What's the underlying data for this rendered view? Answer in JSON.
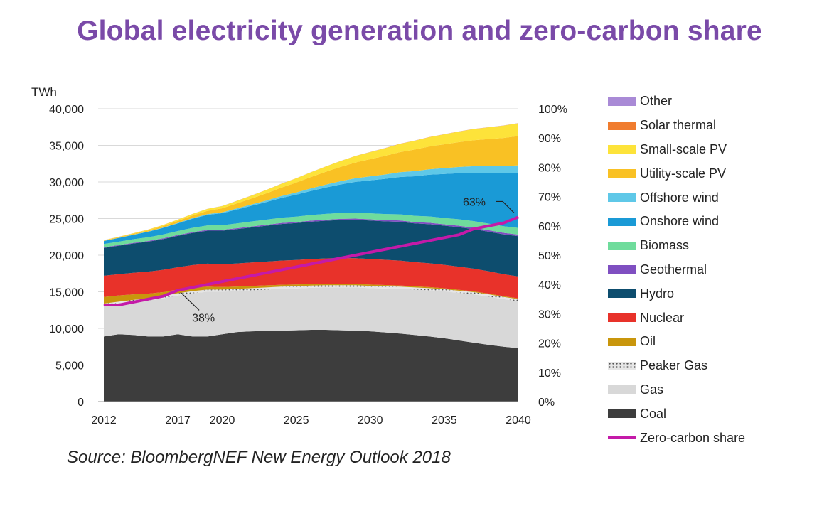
{
  "title": "Global electricity generation and zero-carbon share",
  "source": "Source: BloombergNEF New Energy Outlook 2018",
  "chart_data": {
    "type": "area",
    "stacked": true,
    "title": "Global electricity generation and zero-carbon share",
    "ylabel": "TWh",
    "ylim": [
      0,
      40000
    ],
    "yticks": [
      "0",
      "5,000",
      "10,000",
      "15,000",
      "20,000",
      "25,000",
      "30,000",
      "35,000",
      "40,000"
    ],
    "y2lim": [
      0,
      100
    ],
    "y2ticks": [
      "0%",
      "10%",
      "20%",
      "30%",
      "40%",
      "50%",
      "60%",
      "70%",
      "80%",
      "90%",
      "100%"
    ],
    "xlim": [
      2012,
      2040
    ],
    "xticks": [
      "2012",
      "2017",
      "2020",
      "2025",
      "2030",
      "2035",
      "2040"
    ],
    "x": [
      2012,
      2013,
      2014,
      2015,
      2016,
      2017,
      2018,
      2019,
      2020,
      2021,
      2022,
      2023,
      2024,
      2025,
      2026,
      2027,
      2028,
      2029,
      2030,
      2031,
      2032,
      2033,
      2034,
      2035,
      2036,
      2037,
      2038,
      2039,
      2040
    ],
    "series": [
      {
        "name": "Coal",
        "color": "#3d3d3d",
        "values": [
          8900,
          9200,
          9100,
          8900,
          8900,
          9200,
          8900,
          8900,
          9200,
          9500,
          9600,
          9650,
          9700,
          9750,
          9800,
          9800,
          9750,
          9700,
          9600,
          9450,
          9300,
          9100,
          8900,
          8650,
          8350,
          8050,
          7750,
          7500,
          7300
        ]
      },
      {
        "name": "Gas",
        "color": "#d8d8d8",
        "values": [
          4200,
          4150,
          4500,
          4900,
          5200,
          5300,
          5900,
          6100,
          5800,
          5600,
          5600,
          5650,
          5700,
          5700,
          5750,
          5800,
          5850,
          5900,
          5900,
          6000,
          6100,
          6200,
          6300,
          6400,
          6500,
          6600,
          6600,
          6500,
          6400
        ]
      },
      {
        "name": "Peaker Gas",
        "color": "#e6e6e6",
        "dotted": true,
        "values": [
          300,
          300,
          300,
          300,
          300,
          300,
          300,
          300,
          300,
          300,
          300,
          300,
          300,
          300,
          300,
          300,
          300,
          300,
          300,
          300,
          300,
          300,
          300,
          300,
          300,
          300,
          300,
          300,
          300
        ]
      },
      {
        "name": "Oil",
        "color": "#c9960c",
        "values": [
          900,
          850,
          750,
          650,
          550,
          500,
          450,
          400,
          350,
          320,
          300,
          280,
          260,
          240,
          220,
          210,
          200,
          190,
          180,
          170,
          160,
          150,
          140,
          130,
          120,
          110,
          100,
          100,
          100
        ]
      },
      {
        "name": "Nuclear",
        "color": "#e8322a",
        "values": [
          2900,
          2900,
          2950,
          3000,
          3050,
          3050,
          3100,
          3150,
          3100,
          3150,
          3200,
          3250,
          3300,
          3350,
          3400,
          3450,
          3500,
          3500,
          3500,
          3450,
          3400,
          3300,
          3250,
          3200,
          3150,
          3100,
          3050,
          3000,
          3000
        ]
      },
      {
        "name": "Hydro",
        "color": "#0d4d6e",
        "values": [
          3800,
          3900,
          4000,
          4100,
          4200,
          4300,
          4400,
          4500,
          4600,
          4700,
          4800,
          4900,
          5000,
          5050,
          5100,
          5150,
          5200,
          5250,
          5250,
          5250,
          5300,
          5300,
          5350,
          5350,
          5400,
          5400,
          5400,
          5450,
          5500
        ]
      },
      {
        "name": "Geothermal",
        "color": "#7f4fc1",
        "values": [
          80,
          80,
          90,
          90,
          100,
          100,
          110,
          110,
          120,
          120,
          130,
          130,
          140,
          140,
          150,
          150,
          160,
          160,
          170,
          170,
          180,
          180,
          190,
          190,
          200,
          200,
          210,
          210,
          220
        ]
      },
      {
        "name": "Biomass",
        "color": "#6fdc9c",
        "values": [
          450,
          470,
          490,
          510,
          530,
          550,
          580,
          600,
          620,
          650,
          680,
          700,
          720,
          740,
          760,
          780,
          800,
          810,
          820,
          830,
          840,
          850,
          860,
          870,
          880,
          890,
          900,
          900,
          900
        ]
      },
      {
        "name": "Onshore wind",
        "color": "#1a9ad6",
        "values": [
          400,
          500,
          600,
          750,
          900,
          1050,
          1250,
          1450,
          1650,
          1900,
          2150,
          2400,
          2700,
          3000,
          3300,
          3600,
          3900,
          4200,
          4500,
          4800,
          5100,
          5400,
          5700,
          6000,
          6300,
          6600,
          6900,
          7200,
          7500
        ]
      },
      {
        "name": "Offshore wind",
        "color": "#5fc8e8",
        "values": [
          20,
          20,
          30,
          40,
          50,
          60,
          80,
          100,
          120,
          150,
          180,
          220,
          260,
          300,
          350,
          400,
          450,
          500,
          550,
          600,
          650,
          700,
          750,
          800,
          850,
          900,
          950,
          1000,
          1050
        ]
      },
      {
        "name": "Utility-scale PV",
        "color": "#f9c124",
        "values": [
          60,
          80,
          110,
          150,
          200,
          270,
          350,
          450,
          550,
          680,
          820,
          980,
          1150,
          1350,
          1550,
          1750,
          1950,
          2150,
          2350,
          2550,
          2750,
          2950,
          3100,
          3250,
          3400,
          3550,
          3700,
          3850,
          4000
        ]
      },
      {
        "name": "Small-scale PV",
        "color": "#fde33a",
        "values": [
          40,
          60,
          80,
          110,
          140,
          180,
          220,
          260,
          300,
          350,
          400,
          460,
          520,
          580,
          650,
          720,
          800,
          880,
          960,
          1040,
          1120,
          1200,
          1280,
          1360,
          1440,
          1520,
          1600,
          1680,
          1750
        ]
      },
      {
        "name": "Solar thermal",
        "color": "#f07c2e",
        "values": [
          5,
          5,
          5,
          5,
          5,
          5,
          5,
          5,
          5,
          10,
          10,
          10,
          10,
          10,
          10,
          10,
          10,
          15,
          15,
          15,
          15,
          15,
          15,
          20,
          20,
          20,
          20,
          20,
          20
        ]
      },
      {
        "name": "Other",
        "color": "#a98ad6",
        "values": [
          5,
          5,
          5,
          5,
          5,
          5,
          5,
          5,
          5,
          5,
          5,
          5,
          5,
          5,
          5,
          5,
          5,
          5,
          5,
          5,
          5,
          5,
          5,
          5,
          5,
          5,
          5,
          5,
          5
        ]
      }
    ],
    "line": {
      "name": "Zero-carbon share",
      "color": "#c41aa8",
      "axis": "right",
      "values": [
        33,
        33,
        34,
        35,
        36,
        38,
        39,
        40,
        41,
        42,
        43,
        44,
        45,
        46,
        47,
        48,
        49,
        50,
        51,
        52,
        53,
        54,
        55,
        56,
        57,
        59,
        60,
        61,
        63
      ]
    },
    "annotations": [
      {
        "text": "38%",
        "x": 2017,
        "value": 38
      },
      {
        "text": "63%",
        "x": 2040,
        "value": 63
      }
    ],
    "legend_position": "right"
  }
}
